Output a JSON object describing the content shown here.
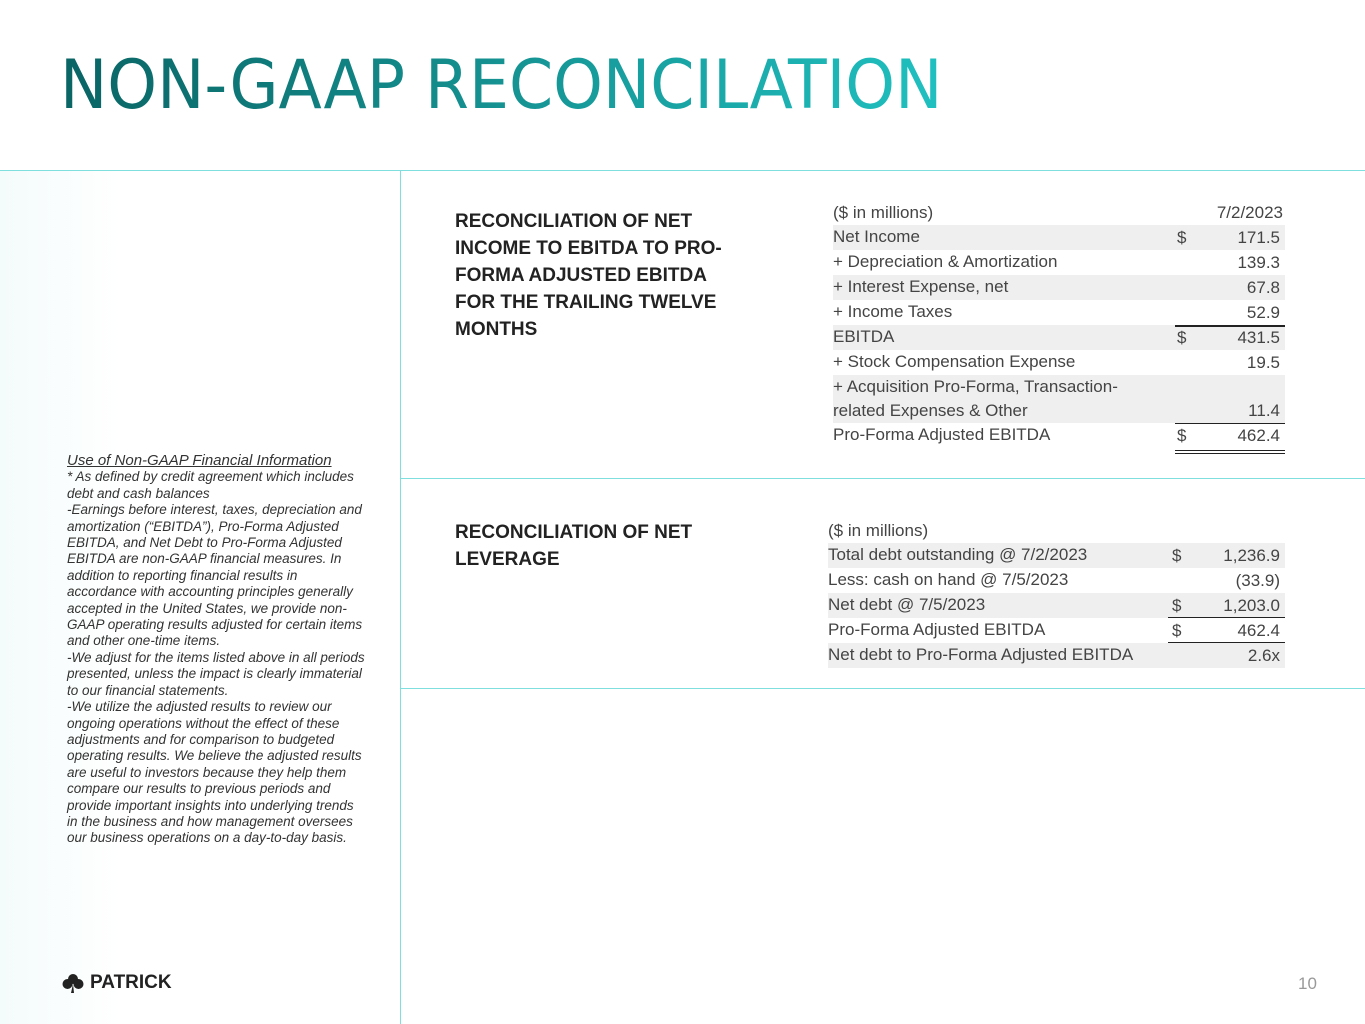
{
  "title": "NON-GAAP RECONCILATION",
  "section1": {
    "heading": "RECONCILIATION OF NET INCOME TO EBITDA TO PRO-FORMA ADJUSTED EBITDA FOR THE TRAILING TWELVE MONTHS",
    "units": "($ in millions)",
    "column": "7/2/2023",
    "rows": [
      {
        "label": "Net Income",
        "cur": "$",
        "value": "171.5"
      },
      {
        "label": "+ Depreciation & Amortization",
        "cur": "",
        "value": "139.3"
      },
      {
        "label": "+ Interest Expense, net",
        "cur": "",
        "value": "67.8"
      },
      {
        "label": "+ Income Taxes",
        "cur": "",
        "value": "52.9"
      },
      {
        "label": "EBITDA",
        "cur": "$",
        "value": "431.5"
      },
      {
        "label": "+ Stock Compensation Expense",
        "cur": "",
        "value": "19.5"
      },
      {
        "label": "+ Acquisition Pro-Forma, Transaction-related Expenses & Other",
        "cur": "",
        "value": "11.4"
      },
      {
        "label": "Pro-Forma Adjusted EBITDA",
        "cur": "$",
        "value": "462.4"
      }
    ]
  },
  "section2": {
    "heading": "RECONCILIATION OF NET LEVERAGE",
    "units": "($ in millions)",
    "rows": [
      {
        "label": "Total debt outstanding @ 7/2/2023",
        "cur": "$",
        "value": "1,236.9"
      },
      {
        "label": "Less: cash on hand @ 7/5/2023",
        "cur": "",
        "value": "(33.9)"
      },
      {
        "label": "Net debt @ 7/5/2023",
        "cur": "$",
        "value": "1,203.0"
      },
      {
        "label": "Pro-Forma Adjusted EBITDA",
        "cur": "$",
        "value": "462.4"
      },
      {
        "label": "Net debt to Pro-Forma Adjusted EBITDA",
        "cur": "",
        "value": "2.6x"
      }
    ]
  },
  "note": {
    "heading": "Use of Non-GAAP Financial Information",
    "body": "* As defined by credit agreement which includes debt and cash balances\n-Earnings before interest, taxes, depreciation and amortization (“EBITDA”), Pro-Forma Adjusted EBITDA, and Net Debt to Pro-Forma Adjusted EBITDA are non-GAAP financial measures. In addition to reporting financial results in accordance with accounting principles generally accepted in the United States, we provide non-GAAP operating results adjusted for certain items and other one-time items.\n-We adjust for the items listed above in all periods presented, unless the impact is clearly immaterial to our financial statements.\n-We utilize the adjusted results to review our ongoing operations without the effect of these adjustments and for comparison to budgeted operating results. We believe the adjusted results are useful to investors because they help them compare our results to previous periods and provide important insights into underlying trends in the business and how management oversees our business operations on a day-to-day basis."
  },
  "logo": "PATRICK",
  "page_number": "10",
  "accent": "#7fdede"
}
